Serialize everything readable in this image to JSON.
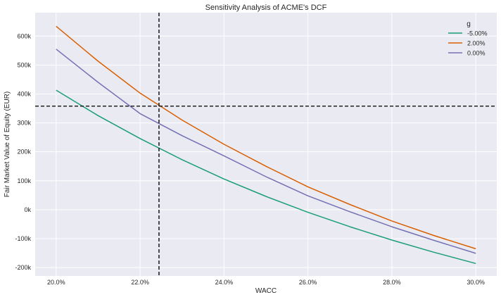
{
  "chart_data": {
    "type": "line",
    "title": "Sensitivity Analysis of ACME's DCF",
    "xlabel": "WACC",
    "ylabel": "Fair Market Value of Equity (EUR)",
    "xlim": [
      19.5,
      30.5
    ],
    "ylim": [
      -229000,
      681000
    ],
    "grid": true,
    "x_ticks": [
      20,
      22,
      24,
      26,
      28,
      30
    ],
    "x_tick_labels": [
      "20.0%",
      "22.0%",
      "24.0%",
      "26.0%",
      "28.0%",
      "30.0%"
    ],
    "y_ticks": [
      -200000,
      -100000,
      0,
      100000,
      200000,
      300000,
      400000,
      500000,
      600000
    ],
    "y_tick_labels": [
      "-200k",
      "-100k",
      "0k",
      "100k",
      "200k",
      "300k",
      "400k",
      "500k",
      "600k"
    ],
    "legend": {
      "title": "g",
      "placement": "top-right"
    },
    "x": [
      20,
      21,
      22,
      23,
      24,
      25,
      26,
      27,
      28,
      29,
      30
    ],
    "series": [
      {
        "name": "-5.00%",
        "color": "#1b9e77",
        "values": [
          413000,
          325000,
          246000,
          173000,
          106000,
          46000,
          -9000,
          -59000,
          -105000,
          -147000,
          -186000
        ]
      },
      {
        "name": "2.00%",
        "color": "#d95f02",
        "values": [
          634000,
          513000,
          403000,
          310000,
          226000,
          150000,
          79000,
          18000,
          -39000,
          -89000,
          -135000
        ]
      },
      {
        "name": "0.00%",
        "color": "#7570b3",
        "values": [
          555000,
          440000,
          332000,
          256000,
          186000,
          114000,
          48000,
          -7000,
          -59000,
          -106000,
          -151000
        ]
      }
    ],
    "reference_lines": {
      "vertical_wacc": 22.45,
      "horizontal_value": 358000
    }
  }
}
